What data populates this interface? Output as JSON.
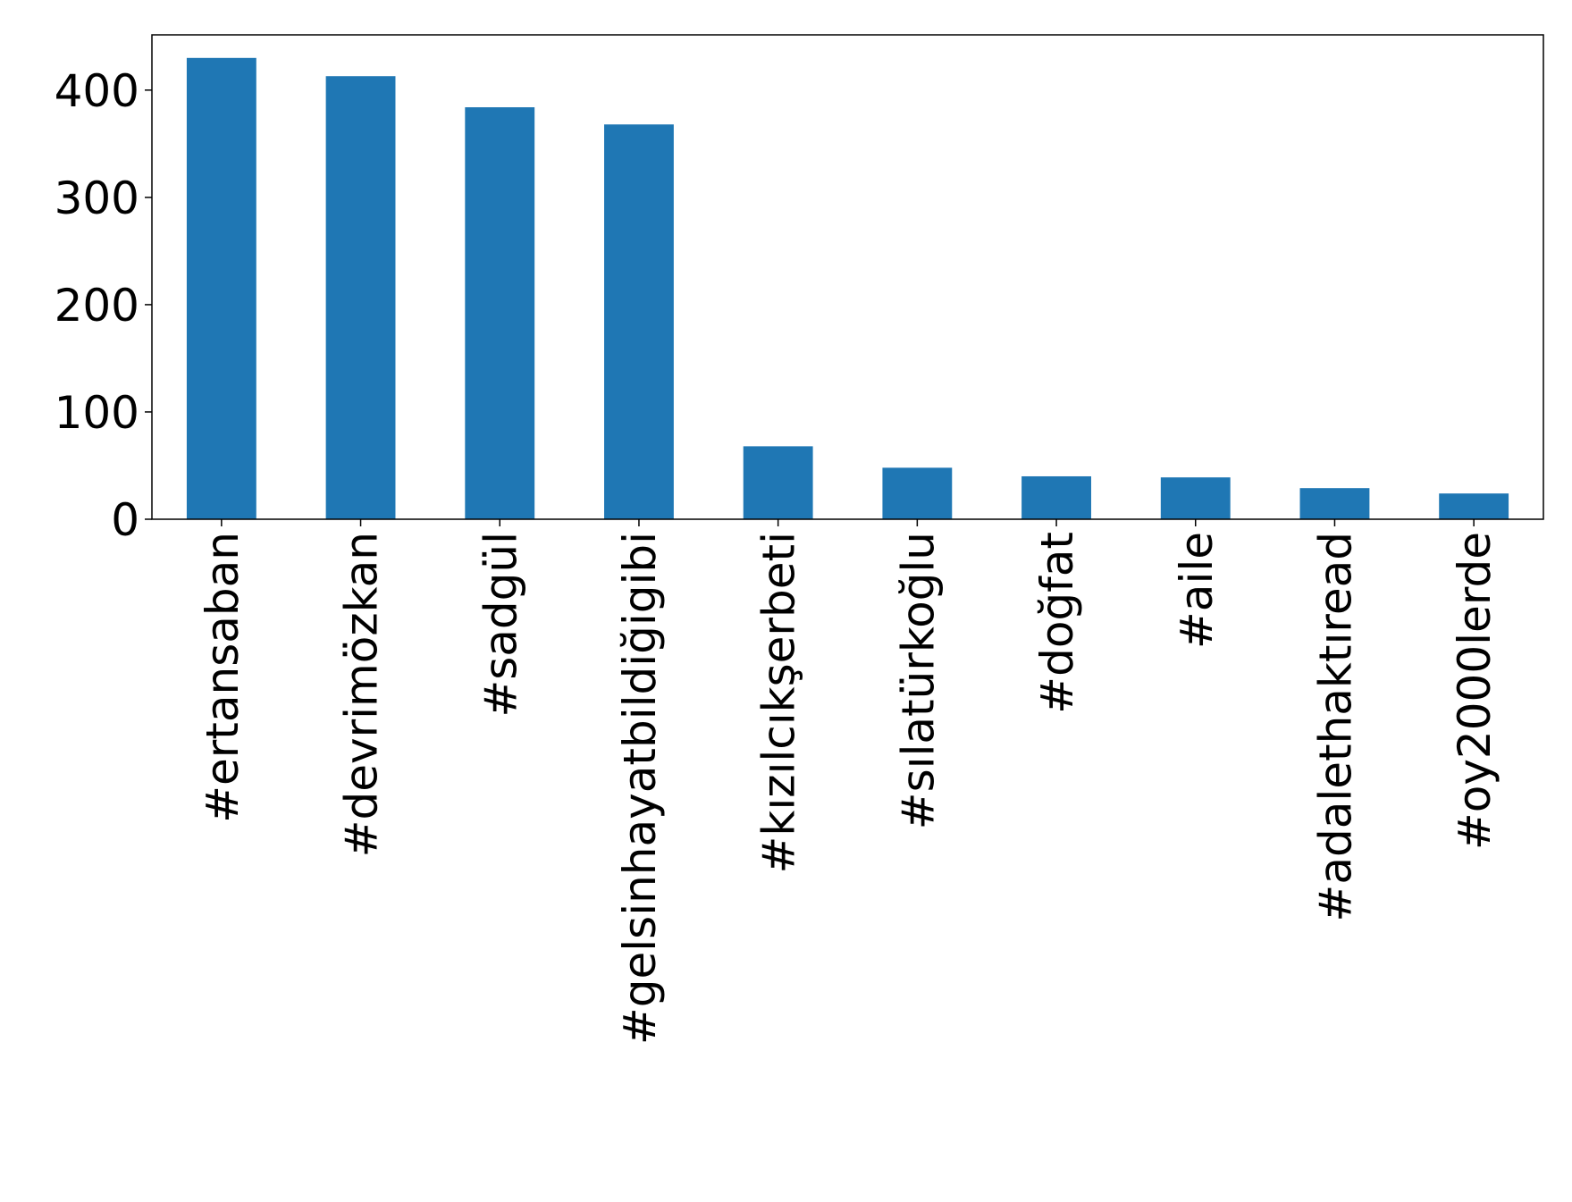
{
  "chart_data": {
    "type": "bar",
    "categories": [
      "#ertansaban",
      "#devrimözkan",
      "#sadgül",
      "#gelsinhayatbildiğigibi",
      "#kızılcıkşerbeti",
      "#sılatürkoğlu",
      "#doğfat",
      "#aile",
      "#adalethaktıread",
      "#oy2000lerde"
    ],
    "values": [
      430,
      413,
      384,
      368,
      68,
      48,
      40,
      39,
      29,
      24
    ],
    "color": "#1f77b4",
    "ylim": [
      0,
      451.5
    ],
    "yticks": [
      0,
      100,
      200,
      300,
      400
    ],
    "grid": false
  }
}
